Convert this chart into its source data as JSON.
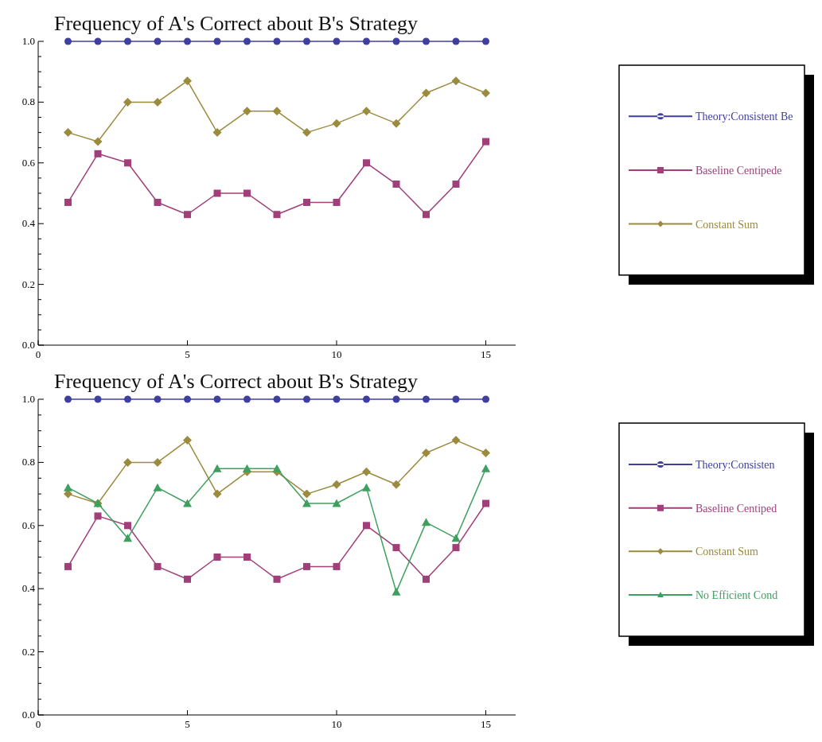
{
  "chart_data": [
    {
      "type": "line",
      "title": "Frequency of A's Correct about B's Strategy",
      "x": [
        1,
        2,
        3,
        4,
        5,
        6,
        7,
        8,
        9,
        10,
        11,
        12,
        13,
        14,
        15
      ],
      "xlim": [
        0,
        16
      ],
      "xticks": [
        0,
        5,
        10,
        15
      ],
      "ylim": [
        0,
        1
      ],
      "yticks": [
        {
          "value": 0,
          "label": "0.0"
        },
        {
          "value": 0.05,
          "label": null
        },
        {
          "value": 0.1,
          "label": null
        },
        {
          "value": 0.15,
          "label": null
        },
        {
          "value": 0.2,
          "label": "0.2"
        },
        {
          "value": 0.25,
          "label": null
        },
        {
          "value": 0.3,
          "label": null
        },
        {
          "value": 0.35,
          "label": null
        },
        {
          "value": 0.4,
          "label": "0.4"
        },
        {
          "value": 0.45,
          "label": null
        },
        {
          "value": 0.5,
          "label": null
        },
        {
          "value": 0.55,
          "label": null
        },
        {
          "value": 0.6,
          "label": "0.6"
        },
        {
          "value": 0.65,
          "label": null
        },
        {
          "value": 0.7,
          "label": null
        },
        {
          "value": 0.75,
          "label": null
        },
        {
          "value": 0.8,
          "label": "0.8"
        },
        {
          "value": 0.85,
          "label": null
        },
        {
          "value": 0.9,
          "label": null
        },
        {
          "value": 0.95,
          "label": null
        },
        {
          "value": 1,
          "label": "1.0"
        }
      ],
      "grid": false,
      "legend": "right",
      "series": [
        {
          "name": "Theory:Consistent Be",
          "color": "#3f3fa0",
          "marker": "circle",
          "values": [
            1,
            1,
            1,
            1,
            1,
            1,
            1,
            1,
            1,
            1,
            1,
            1,
            1,
            1,
            1
          ]
        },
        {
          "name": "Baseline Centipede",
          "color": "#a03f7a",
          "marker": "square",
          "values": [
            0.47,
            0.63,
            0.6,
            0.47,
            0.43,
            0.5,
            0.5,
            0.43,
            0.47,
            0.47,
            0.6,
            0.53,
            0.43,
            0.53,
            0.67
          ]
        },
        {
          "name": "Constant Sum",
          "color": "#9a8b3f",
          "marker": "diamond",
          "values": [
            0.7,
            0.67,
            0.8,
            0.8,
            0.87,
            0.7,
            0.77,
            0.77,
            0.7,
            0.73,
            0.77,
            0.73,
            0.83,
            0.87,
            0.83
          ]
        }
      ]
    },
    {
      "type": "line",
      "title": "Frequency of A's Correct about B's Strategy",
      "x": [
        1,
        2,
        3,
        4,
        5,
        6,
        7,
        8,
        9,
        10,
        11,
        12,
        13,
        14,
        15
      ],
      "xlim": [
        0,
        16
      ],
      "xticks": [
        0,
        5,
        10,
        15
      ],
      "ylim": [
        0,
        1
      ],
      "yticks": [
        {
          "value": 0,
          "label": "0.0"
        },
        {
          "value": 0.05,
          "label": null
        },
        {
          "value": 0.1,
          "label": null
        },
        {
          "value": 0.15,
          "label": null
        },
        {
          "value": 0.2,
          "label": "0.2"
        },
        {
          "value": 0.25,
          "label": null
        },
        {
          "value": 0.3,
          "label": null
        },
        {
          "value": 0.35,
          "label": null
        },
        {
          "value": 0.4,
          "label": "0.4"
        },
        {
          "value": 0.45,
          "label": null
        },
        {
          "value": 0.5,
          "label": null
        },
        {
          "value": 0.55,
          "label": null
        },
        {
          "value": 0.6,
          "label": "0.6"
        },
        {
          "value": 0.65,
          "label": null
        },
        {
          "value": 0.7,
          "label": null
        },
        {
          "value": 0.75,
          "label": null
        },
        {
          "value": 0.8,
          "label": "0.8"
        },
        {
          "value": 0.85,
          "label": null
        },
        {
          "value": 0.9,
          "label": null
        },
        {
          "value": 0.95,
          "label": null
        },
        {
          "value": 1,
          "label": "1.0"
        }
      ],
      "grid": false,
      "legend": "right",
      "series": [
        {
          "name": "Theory:Consisten",
          "color": "#3f3fa0",
          "marker": "circle",
          "values": [
            1,
            1,
            1,
            1,
            1,
            1,
            1,
            1,
            1,
            1,
            1,
            1,
            1,
            1,
            1
          ]
        },
        {
          "name": "Baseline Centiped",
          "color": "#a03f7a",
          "marker": "square",
          "values": [
            0.47,
            0.63,
            0.6,
            0.47,
            0.43,
            0.5,
            0.5,
            0.43,
            0.47,
            0.47,
            0.6,
            0.53,
            0.43,
            0.53,
            0.67
          ]
        },
        {
          "name": "Constant Sum",
          "color": "#9a8b3f",
          "marker": "diamond",
          "values": [
            0.7,
            0.67,
            0.8,
            0.8,
            0.87,
            0.7,
            0.77,
            0.77,
            0.7,
            0.73,
            0.77,
            0.73,
            0.83,
            0.87,
            0.83
          ]
        },
        {
          "name": "No Efficient Cond",
          "color": "#3f9f5f",
          "marker": "triangle",
          "values": [
            0.72,
            0.67,
            0.56,
            0.72,
            0.67,
            0.78,
            0.78,
            0.78,
            0.67,
            0.67,
            0.72,
            0.39,
            0.61,
            0.56,
            0.78
          ]
        }
      ]
    }
  ]
}
